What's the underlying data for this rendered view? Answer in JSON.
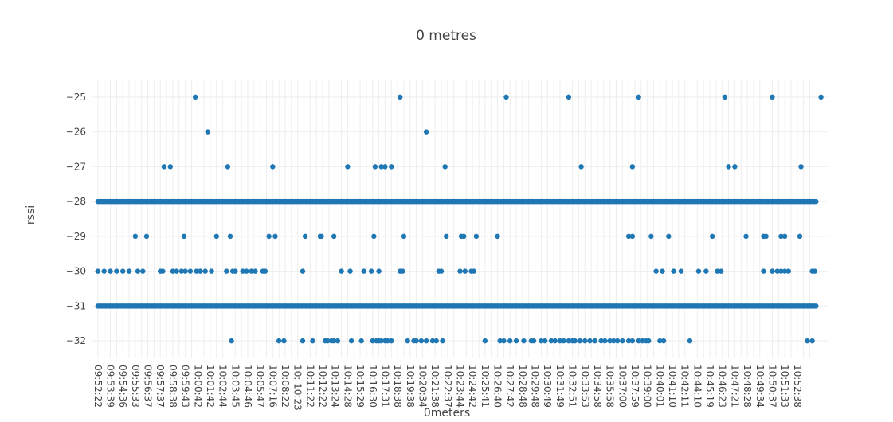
{
  "chart_data": {
    "type": "scatter",
    "title": "0 metres",
    "xlabel": "0meters",
    "ylabel": "rssi",
    "ylim": [
      -32.5,
      -24.5
    ],
    "yticks": [
      -25,
      -26,
      -27,
      -28,
      -29,
      -30,
      -31,
      -32
    ],
    "ytick_labels": [
      "−25",
      "−26",
      "−27",
      "−28",
      "−29",
      "−30",
      "−31",
      "−32"
    ],
    "grid": true,
    "color": "#1f77b4",
    "xticks": [
      "09:52:22",
      "09:53:39",
      "09:54:36",
      "09:55:33",
      "09:56:37",
      "09:57:37",
      "09:58:38",
      "09:59:43",
      "10:00:42",
      "10:01:42",
      "10:02:44",
      "10:03:45",
      "10:04:46",
      "10:05:47",
      "10:07:16",
      "10:08:22",
      "10: 10:23",
      "10:11:22",
      "10:12:22",
      "10:13:24",
      "10:14:28",
      "10:15:29",
      "10:16:30",
      "10:17:31",
      "10:18:38",
      "10:19:38",
      "10:20:34",
      "10:21:38",
      "10:22:37",
      "10:23:44",
      "10:24:42",
      "10:25:41",
      "10:26:40",
      "10:27:42",
      "10:28:48",
      "10:29:48",
      "10:30:49",
      "10:31:49",
      "10:32:51",
      "10:33:53",
      "10:34:58",
      "10:35:58",
      "10:37:00",
      "10:37:59",
      "10:39:00",
      "10:40:01",
      "10:41:10",
      "10:42:11",
      "10:44:10",
      "10:45:19",
      "10:46:23",
      "10:47:21",
      "10:48:28",
      "10:49:34",
      "10:50:37",
      "10:51:33",
      "10:52:38"
    ],
    "series": [
      {
        "values_by_level": {
          "-25": [
            7.8,
            24.2,
            32.7,
            37.7,
            43.3,
            50.2,
            54.0,
            57.9
          ],
          "-26": [
            8.8,
            26.3
          ],
          "-27": [
            5.3,
            5.8,
            10.4,
            14.0,
            20.0,
            22.2,
            22.7,
            23.0,
            23.5,
            27.8,
            38.7,
            42.8,
            50.5,
            51.0,
            56.3
          ],
          "-28_ranges": [
            [
              0,
              57.5
            ]
          ],
          "-29": [
            3.0,
            3.9,
            6.9,
            9.5,
            10.6,
            13.7,
            14.2,
            16.6,
            17.8,
            17.9,
            18.9,
            22.1,
            24.5,
            27.9,
            29.1,
            29.3,
            30.3,
            32.0,
            42.5,
            42.8,
            44.3,
            45.7,
            49.2,
            51.9,
            53.3,
            53.5,
            54.7,
            55.0,
            56.2
          ],
          "-30": [
            0,
            0.5,
            1,
            1.5,
            2,
            2.5,
            3.2,
            3.6,
            5,
            5.2,
            6,
            6.3,
            6.7,
            7,
            7.4,
            7.9,
            8.2,
            8.6,
            9.1,
            10.3,
            10.8,
            11.0,
            11.6,
            11.9,
            12.3,
            12.6,
            13.2,
            13.4,
            16.4,
            19.5,
            20.2,
            21.3,
            21.9,
            22.5,
            24.2,
            24.4,
            27.3,
            27.5,
            29.0,
            29.4,
            29.9,
            30.1,
            44.7,
            45.2,
            46.1,
            46.7,
            48.1,
            48.7,
            49.6,
            49.9,
            53.3,
            54.0,
            54.4,
            54.7,
            55.0,
            55.3,
            57.2,
            57.4
          ],
          "-31_ranges": [
            [
              0,
              57.5
            ]
          ],
          "-32": [
            10.7,
            14.5,
            14.9,
            16.4,
            17.2,
            18.2,
            18.4,
            18.7,
            18.9,
            19.2,
            20.3,
            21.1,
            22.0,
            22.3,
            22.5,
            22.7,
            23.0,
            23.2,
            23.5,
            24.8,
            25.3,
            25.5,
            25.9,
            26.3,
            26.8,
            27.1,
            27.6,
            31.0,
            32.2,
            32.5,
            33.0,
            33.5,
            34.1,
            34.7,
            34.9,
            35.5,
            35.8,
            36.3,
            36.6,
            37.0,
            37.3,
            37.7,
            38.0,
            38.2,
            38.6,
            39.0,
            39.4,
            39.8,
            40.3,
            40.6,
            41.0,
            41.3,
            41.6,
            42.0,
            42.5,
            42.8,
            43.3,
            43.6,
            43.9,
            44.1,
            45.0,
            45.3,
            47.4,
            56.8,
            57.2
          ]
        }
      }
    ]
  }
}
